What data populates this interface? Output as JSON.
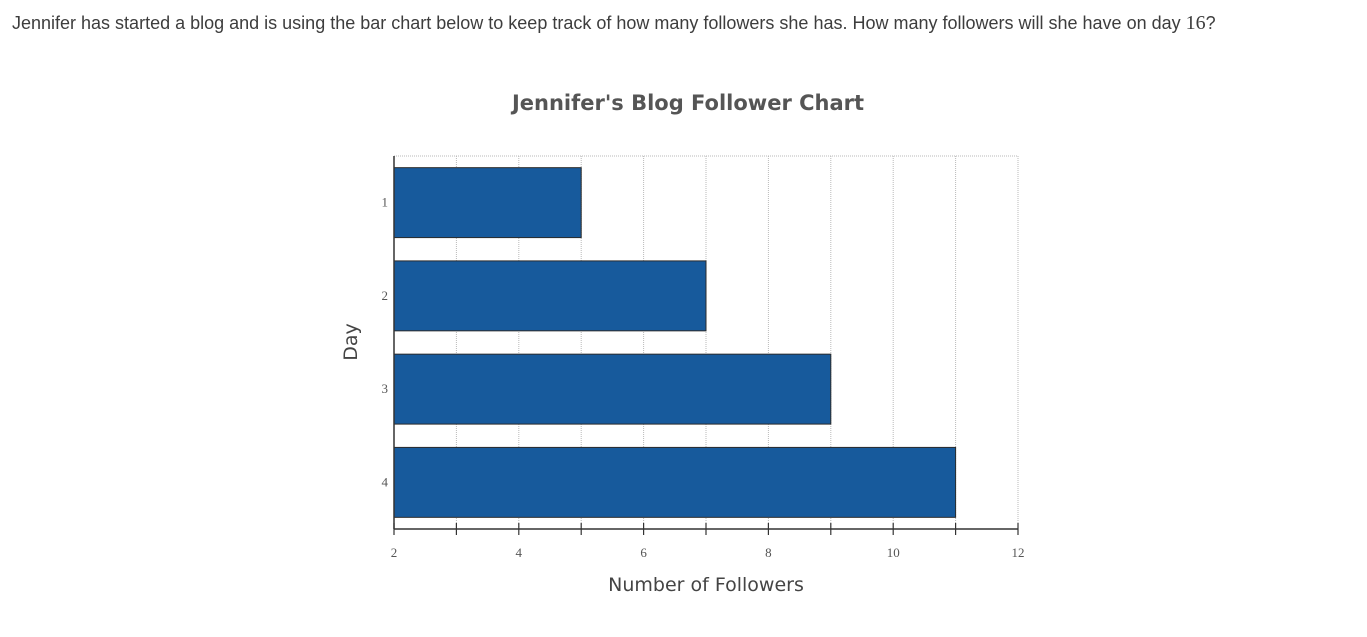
{
  "question": {
    "text_before": "Jennifer has started a blog and is using the bar chart below to keep track of how many followers she has. How many followers will she have on day ",
    "day_number": "16",
    "text_after": "?"
  },
  "chart_data": {
    "type": "bar",
    "orientation": "horizontal",
    "title": "Jennifer's Blog Follower Chart",
    "xlabel": "Number of Followers",
    "ylabel": "Day",
    "categories": [
      "1",
      "2",
      "3",
      "4"
    ],
    "values": [
      5,
      7,
      9,
      11
    ],
    "xlim": [
      2,
      12
    ],
    "x_ticks": [
      2,
      4,
      6,
      8,
      10,
      12
    ],
    "bar_color": "#175a9c",
    "grid": true
  }
}
